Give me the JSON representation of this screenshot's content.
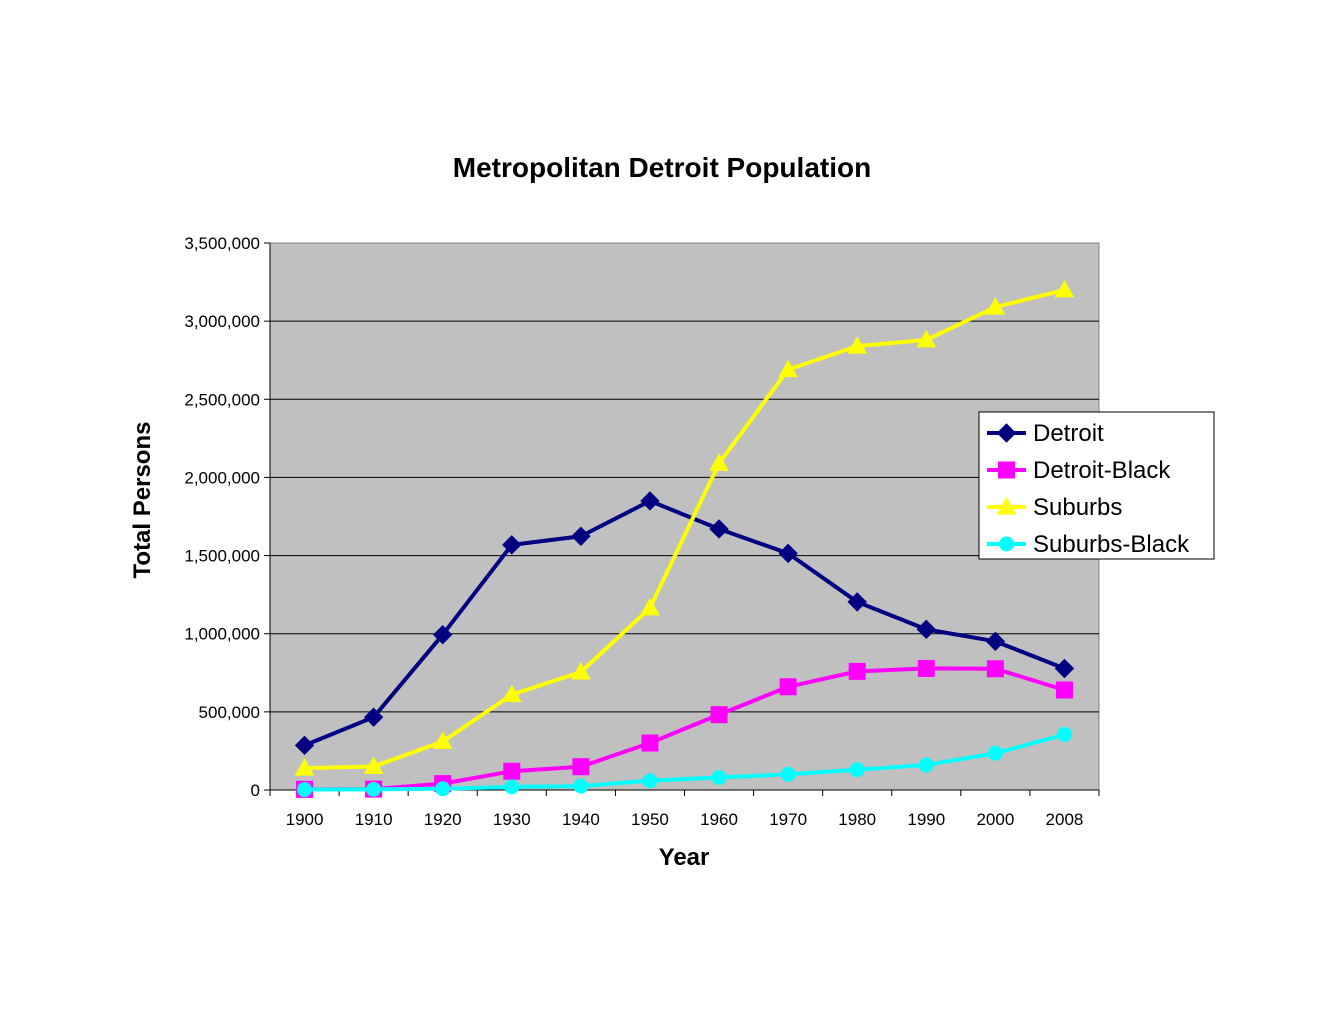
{
  "chart_data": {
    "type": "line",
    "title": "Metropolitan Detroit Population",
    "xlabel": "Year",
    "ylabel": "Total Persons",
    "categories": [
      "1900",
      "1910",
      "1920",
      "1930",
      "1940",
      "1950",
      "1960",
      "1970",
      "1980",
      "1990",
      "2000",
      "2008"
    ],
    "ylim": [
      0,
      3500000
    ],
    "yticks": [
      0,
      500000,
      1000000,
      1500000,
      2000000,
      2500000,
      3000000,
      3500000
    ],
    "ytick_labels": [
      "0",
      "500,000",
      "1,000,000",
      "1,500,000",
      "2,000,000",
      "2,500,000",
      "3,000,000",
      "3,500,000"
    ],
    "grid": "horizontal",
    "plot_background": "#C0C0C0",
    "legend_position": "right",
    "series": [
      {
        "name": "Detroit",
        "color": "#000080",
        "marker": "diamond",
        "values": [
          285704,
          465766,
          993678,
          1568662,
          1623452,
          1849568,
          1670144,
          1514063,
          1203368,
          1027974,
          951270,
          777493
        ]
      },
      {
        "name": "Detroit-Black",
        "color": "#FF00FF",
        "marker": "square",
        "values": [
          4111,
          5741,
          40838,
          120066,
          149119,
          300506,
          482223,
          660428,
          758939,
          777916,
          775772,
          640000
        ]
      },
      {
        "name": "Suburbs",
        "color": "#FFFF00",
        "marker": "triangle",
        "values": [
          140000,
          150000,
          310000,
          610000,
          755000,
          1165000,
          2090000,
          2690000,
          2840000,
          2880000,
          3090000,
          3200000
        ]
      },
      {
        "name": "Suburbs-Black",
        "color": "#00FFFF",
        "marker": "circle",
        "values": [
          3000,
          4000,
          8000,
          20000,
          25000,
          60000,
          80000,
          100000,
          130000,
          160000,
          235000,
          355000
        ]
      }
    ]
  }
}
